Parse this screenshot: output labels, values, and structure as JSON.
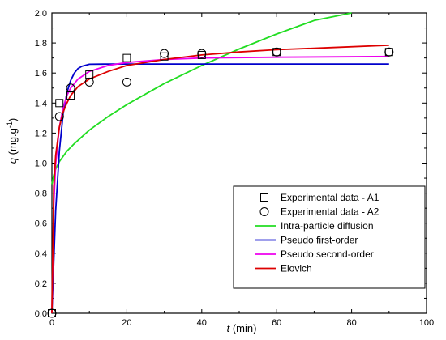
{
  "chart_data": {
    "type": "scatter",
    "xlabel": {
      "symbol": "t",
      "unit": " (min)"
    },
    "ylabel": {
      "symbol": "q",
      "unit": " (mg.g",
      "exp": "-1",
      "close": ")"
    },
    "xlim": [
      0,
      100
    ],
    "ylim": [
      0,
      2.0
    ],
    "xticks": [
      0,
      20,
      40,
      60,
      80,
      100
    ],
    "xtick_labels": [
      "0",
      "20",
      "40",
      "60",
      "80",
      "100"
    ],
    "yticks": [
      0,
      0.2,
      0.4,
      0.6,
      0.8,
      1.0,
      1.2,
      1.4,
      1.6,
      1.8,
      2.0
    ],
    "ytick_labels": [
      "0.0",
      "0.2",
      "0.4",
      "0.6",
      "0.8",
      "1.0",
      "1.2",
      "1.4",
      "1.6",
      "1.8",
      "2.0"
    ],
    "grid": false,
    "legend_position": "bottom-right",
    "scatter_series": [
      {
        "name": "Experimental data - A1",
        "marker": "square",
        "points": [
          [
            0,
            0.0
          ],
          [
            2,
            1.4
          ],
          [
            5,
            1.45
          ],
          [
            10,
            1.59
          ],
          [
            20,
            1.7
          ],
          [
            30,
            1.71
          ],
          [
            40,
            1.72
          ],
          [
            60,
            1.74
          ],
          [
            90,
            1.74
          ]
        ]
      },
      {
        "name": "Experimental data - A2",
        "marker": "circle",
        "points": [
          [
            0,
            0.0
          ],
          [
            2,
            1.31
          ],
          [
            5,
            1.5
          ],
          [
            10,
            1.54
          ],
          [
            20,
            1.54
          ],
          [
            30,
            1.73
          ],
          [
            40,
            1.73
          ],
          [
            60,
            1.74
          ],
          [
            90,
            1.74
          ]
        ]
      }
    ],
    "line_series": [
      {
        "name": "Intra-particle diffusion",
        "color": "#22dd22",
        "points": [
          [
            0,
            0.86
          ],
          [
            0.5,
            0.92
          ],
          [
            1,
            0.96
          ],
          [
            2,
            1.01
          ],
          [
            4,
            1.08
          ],
          [
            6,
            1.13
          ],
          [
            10,
            1.22
          ],
          [
            15,
            1.31
          ],
          [
            20,
            1.39
          ],
          [
            25,
            1.46
          ],
          [
            30,
            1.53
          ],
          [
            40,
            1.65
          ],
          [
            50,
            1.76
          ],
          [
            60,
            1.86
          ],
          [
            70,
            1.95
          ],
          [
            80,
            2.0
          ]
        ]
      },
      {
        "name": "Pseudo first-order",
        "color": "#0000cc",
        "points": [
          [
            0,
            0.0
          ],
          [
            1,
            0.68
          ],
          [
            2,
            1.08
          ],
          [
            3,
            1.33
          ],
          [
            4,
            1.47
          ],
          [
            5,
            1.55
          ],
          [
            6,
            1.6
          ],
          [
            7,
            1.63
          ],
          [
            8,
            1.645
          ],
          [
            10,
            1.658
          ],
          [
            15,
            1.66
          ],
          [
            20,
            1.66
          ],
          [
            40,
            1.66
          ],
          [
            60,
            1.66
          ],
          [
            90,
            1.66
          ]
        ]
      },
      {
        "name": "Pseudo second-order",
        "color": "#ee00ee",
        "points": [
          [
            0,
            0.0
          ],
          [
            0.5,
            0.72
          ],
          [
            1,
            0.99
          ],
          [
            2,
            1.24
          ],
          [
            3,
            1.37
          ],
          [
            4,
            1.45
          ],
          [
            5,
            1.5
          ],
          [
            7,
            1.56
          ],
          [
            10,
            1.61
          ],
          [
            15,
            1.65
          ],
          [
            20,
            1.67
          ],
          [
            30,
            1.69
          ],
          [
            40,
            1.7
          ],
          [
            60,
            1.705
          ],
          [
            90,
            1.71
          ]
        ]
      },
      {
        "name": "Elovich",
        "color": "#dd0000",
        "points": [
          [
            0,
            0.0
          ],
          [
            0.5,
            0.84
          ],
          [
            1,
            1.05
          ],
          [
            2,
            1.24
          ],
          [
            3,
            1.34
          ],
          [
            4,
            1.4
          ],
          [
            5,
            1.45
          ],
          [
            7,
            1.51
          ],
          [
            10,
            1.56
          ],
          [
            15,
            1.61
          ],
          [
            20,
            1.65
          ],
          [
            30,
            1.69
          ],
          [
            40,
            1.72
          ],
          [
            50,
            1.74
          ],
          [
            60,
            1.755
          ],
          [
            75,
            1.77
          ],
          [
            90,
            1.785
          ]
        ]
      }
    ]
  }
}
